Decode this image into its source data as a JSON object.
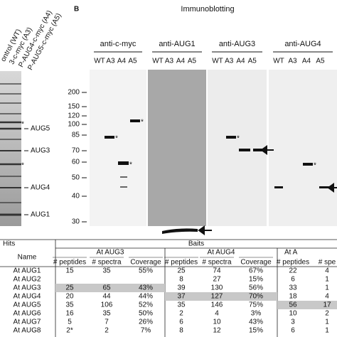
{
  "panel_a": {
    "lane_labels": [
      "ontrol (WT)",
      "3-c-myc (A3)",
      "P-AUG4-c-myc (A4)",
      "P-AUG5-c-myc (A5)"
    ],
    "band_labels": [
      "AUG5",
      "AUG3",
      "AUG4",
      "AUG1"
    ],
    "asterisks": [
      "*",
      "*"
    ]
  },
  "panel_b": {
    "label": "B",
    "title": "Immunoblotting",
    "markers": [
      "200",
      "150",
      "120",
      "100",
      "85",
      "70",
      "60",
      "50",
      "40",
      "30"
    ],
    "blots": [
      {
        "title": "anti-c-myc",
        "lanes": [
          "WT",
          "A3",
          "A4",
          "A5"
        ],
        "asterisks": [
          "*",
          "*",
          "*"
        ]
      },
      {
        "title": "anti-AUG1",
        "lanes": [
          "WT",
          "A3",
          "A4",
          "A5"
        ]
      },
      {
        "title": "anti-AUG3",
        "lanes": [
          "WT",
          "A3",
          "A4",
          "A5"
        ],
        "asterisks": [
          "*"
        ]
      },
      {
        "title": "anti-AUG4",
        "lanes": [
          "WT",
          "A3",
          "A4",
          "A5"
        ],
        "asterisks": [
          "*"
        ]
      }
    ]
  },
  "table": {
    "corner": "Hits",
    "group_header": "Baits",
    "name_header": "Name",
    "groups": [
      "At AUG3",
      "At AUG4",
      "At A"
    ],
    "subheaders": [
      [
        "# peptides",
        "# spectra",
        "Coverage"
      ],
      [
        "# peptides",
        "# spectra",
        "Coverage"
      ],
      [
        "# peptides",
        "# spe"
      ]
    ],
    "rows": [
      {
        "name": "At AUG1",
        "cells": [
          "15",
          "35",
          "55%",
          "25",
          "74",
          "67%",
          "22",
          "4"
        ]
      },
      {
        "name": "At AUG2",
        "cells": [
          null,
          null,
          null,
          "8",
          "27",
          "15%",
          "6",
          "1"
        ]
      },
      {
        "name": "At AUG3",
        "cells": [
          "25",
          "65",
          "43%",
          "39",
          "130",
          "56%",
          "33",
          "1"
        ]
      },
      {
        "name": "At AUG4",
        "cells": [
          "20",
          "44",
          "44%",
          "37",
          "127",
          "70%",
          "18",
          "4"
        ]
      },
      {
        "name": "At AUG5",
        "cells": [
          "35",
          "106",
          "52%",
          "35",
          "146",
          "75%",
          "56",
          "17"
        ]
      },
      {
        "name": "At AUG6",
        "cells": [
          "16",
          "35",
          "50%",
          "2",
          "4",
          "3%",
          "10",
          "2"
        ]
      },
      {
        "name": "At AUG7",
        "cells": [
          "5",
          "7",
          "26%",
          "6",
          "10",
          "43%",
          "3",
          "1"
        ]
      },
      {
        "name": "At AUG8",
        "cells": [
          "2*",
          "2",
          "7%",
          "8",
          "12",
          "15%",
          "6",
          "1"
        ]
      }
    ]
  }
}
